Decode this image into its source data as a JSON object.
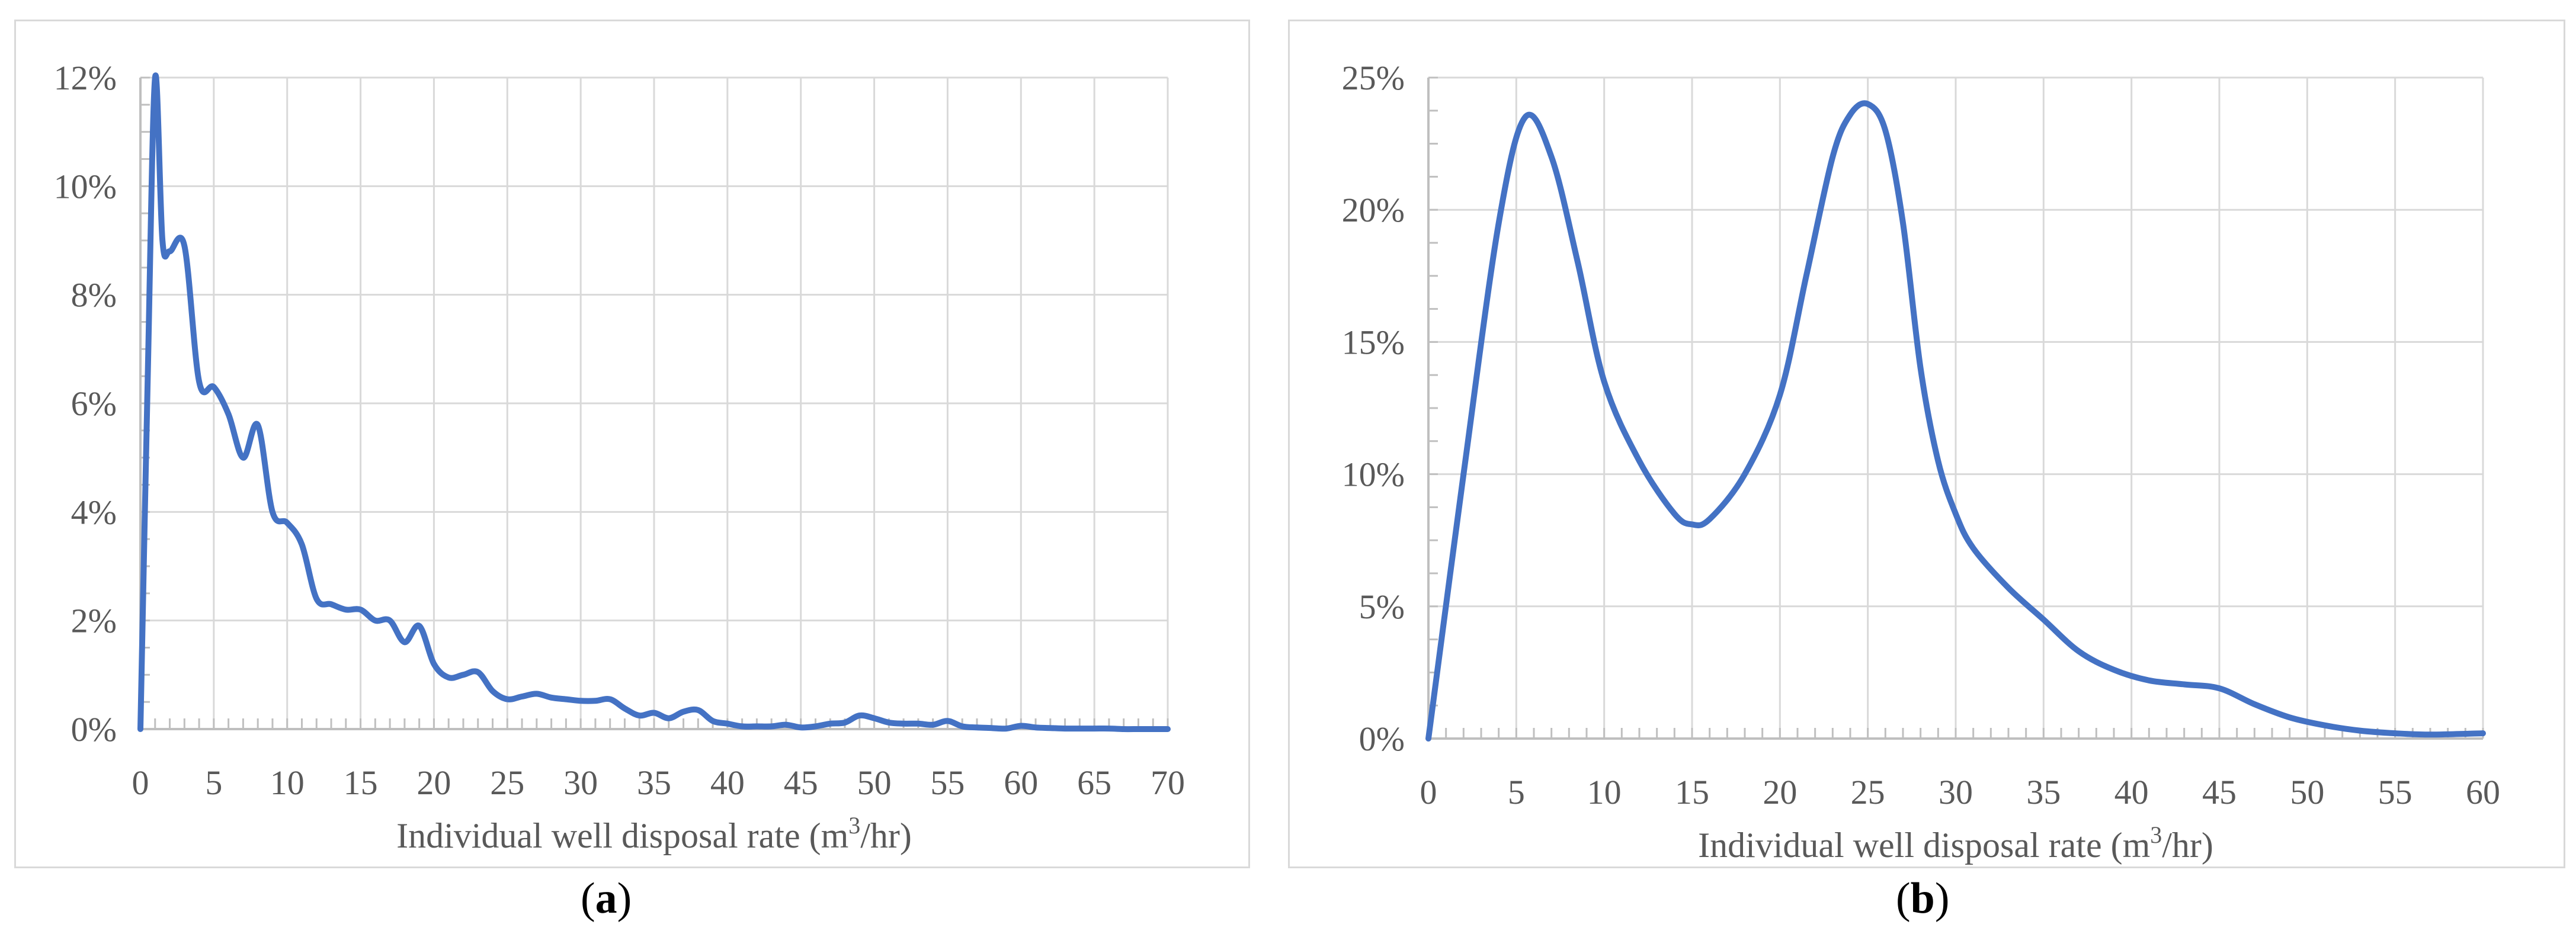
{
  "chart_data": [
    {
      "panel": "a",
      "type": "line",
      "xlabel": "Individual well disposal rate (m",
      "xlabel_sup": "3",
      "xlabel_end": "/hr)",
      "xlim": [
        0,
        70
      ],
      "ylim": [
        0,
        12
      ],
      "x_ticks": [
        "0",
        "5",
        "10",
        "15",
        "20",
        "25",
        "30",
        "35",
        "40",
        "45",
        "50",
        "55",
        "60",
        "65",
        "70"
      ],
      "y_ticks": [
        "0%",
        "2%",
        "4%",
        "6%",
        "8%",
        "10%",
        "12%"
      ],
      "grid": true,
      "line_color": "#4472c4",
      "series": [
        {
          "x": [
            0,
            0.5,
            1,
            1.5,
            2,
            3,
            4,
            5,
            6,
            7,
            8,
            9,
            10,
            11,
            12,
            13,
            14,
            15,
            16,
            17,
            18,
            19,
            20,
            21,
            22,
            23,
            24,
            25,
            26,
            27,
            28,
            29,
            30,
            31,
            32,
            33,
            34,
            35,
            36,
            37,
            38,
            39,
            40,
            41,
            42,
            43,
            44,
            45,
            46,
            47,
            48,
            49,
            50,
            51,
            52,
            53,
            54,
            55,
            56,
            57,
            58,
            59,
            60,
            61,
            62,
            63,
            64,
            65,
            66,
            67,
            68,
            69,
            70
          ],
          "y": [
            0,
            6.5,
            12,
            9.0,
            8.8,
            8.9,
            6.4,
            6.3,
            5.8,
            5.0,
            5.6,
            4.0,
            3.8,
            3.4,
            2.4,
            2.3,
            2.2,
            2.2,
            2.0,
            2.0,
            1.6,
            1.9,
            1.2,
            0.95,
            1.0,
            1.05,
            0.7,
            0.55,
            0.6,
            0.65,
            0.58,
            0.55,
            0.52,
            0.52,
            0.55,
            0.38,
            0.25,
            0.3,
            0.2,
            0.32,
            0.35,
            0.15,
            0.1,
            0.05,
            0.05,
            0.05,
            0.08,
            0.03,
            0.05,
            0.1,
            0.12,
            0.25,
            0.2,
            0.12,
            0.1,
            0.1,
            0.08,
            0.15,
            0.05,
            0.03,
            0.02,
            0.01,
            0.06,
            0.03,
            0.02,
            0.01,
            0.01,
            0.01,
            0.01,
            0.0,
            0.0,
            0.0,
            0.0
          ]
        }
      ]
    },
    {
      "panel": "b",
      "type": "line",
      "xlabel": "Individual well disposal rate (m",
      "xlabel_sup": "3",
      "xlabel_end": "/hr)",
      "xlim": [
        0,
        60
      ],
      "ylim": [
        0,
        25
      ],
      "x_ticks": [
        "0",
        "5",
        "10",
        "15",
        "20",
        "25",
        "30",
        "35",
        "40",
        "45",
        "50",
        "55",
        "60"
      ],
      "y_ticks": [
        "0%",
        "5%",
        "10%",
        "15%",
        "20%",
        "25%"
      ],
      "grid": true,
      "line_color": "#4472c4",
      "series": [
        {
          "x": [
            0,
            2,
            4,
            5.5,
            7,
            8.5,
            10,
            12,
            14,
            15,
            16,
            18,
            20,
            21.5,
            23,
            24,
            25,
            26,
            27,
            28,
            29,
            30,
            31,
            33,
            35,
            37,
            39,
            41,
            43,
            45,
            47,
            49,
            51,
            53,
            55,
            57,
            60
          ],
          "y": [
            0,
            10,
            19.5,
            23.5,
            22.0,
            18.0,
            13.5,
            10.5,
            8.5,
            8.1,
            8.3,
            10.0,
            13.0,
            17.5,
            22.0,
            23.6,
            24.0,
            23.0,
            19.5,
            14.0,
            10.5,
            8.5,
            7.2,
            5.7,
            4.5,
            3.3,
            2.6,
            2.2,
            2.05,
            1.9,
            1.3,
            0.8,
            0.5,
            0.3,
            0.2,
            0.15,
            0.2
          ]
        }
      ]
    }
  ],
  "captions": {
    "a_open": "(",
    "a_letter": "a",
    "a_close": ")",
    "b_open": "(",
    "b_letter": "b",
    "b_close": ")"
  }
}
